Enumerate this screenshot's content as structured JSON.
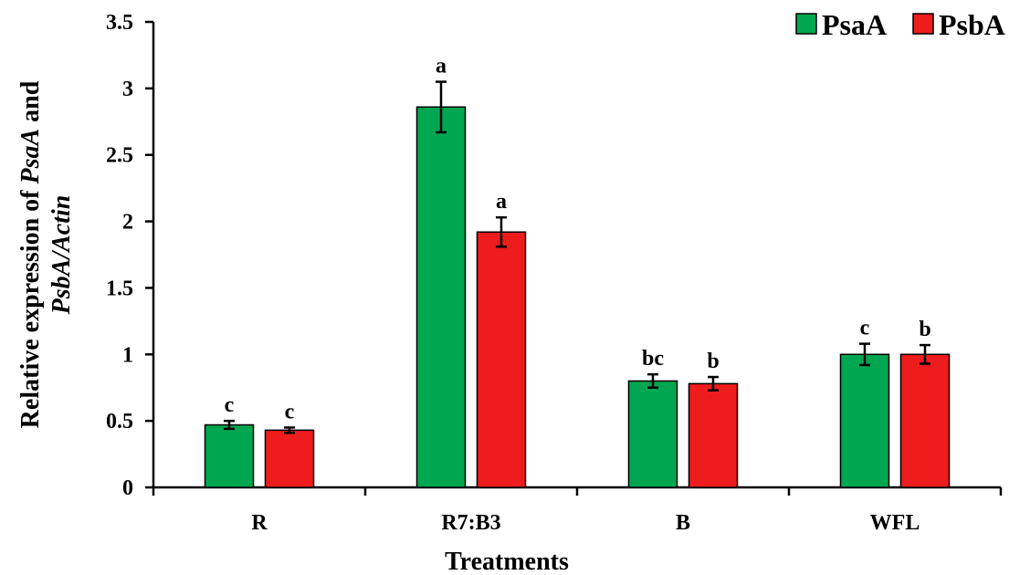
{
  "chart_data": {
    "type": "bar",
    "title": "",
    "xlabel": "Treatments",
    "ylabel_parts": [
      {
        "text": "Relative expression of ",
        "italic": false,
        "line": 1
      },
      {
        "text": "PsaA",
        "italic": true,
        "line": 1
      },
      {
        "text": " and",
        "italic": false,
        "line": 1
      },
      {
        "text": "PsbA/Actin",
        "italic": true,
        "line": 2
      }
    ],
    "ylim": [
      0,
      3.5
    ],
    "yticks": [
      0,
      0.5,
      1,
      1.5,
      2,
      2.5,
      3,
      3.5
    ],
    "ytick_labels": [
      "0",
      "0.5",
      "1",
      "1.5",
      "2",
      "2.5",
      "3",
      "3.5"
    ],
    "categories": [
      "R",
      "R7:B3",
      "B",
      "WFL"
    ],
    "series": [
      {
        "name": "PsaA",
        "color": "#00a651",
        "values": [
          0.47,
          2.86,
          0.8,
          1.0
        ],
        "errors": [
          0.03,
          0.19,
          0.05,
          0.08
        ],
        "labels": [
          "c",
          "a",
          "bc",
          "c"
        ]
      },
      {
        "name": "PsbA",
        "color": "#ee1c1c",
        "values": [
          0.43,
          1.92,
          0.78,
          1.0
        ],
        "errors": [
          0.02,
          0.11,
          0.05,
          0.07
        ],
        "labels": [
          "c",
          "a",
          "b",
          "b"
        ]
      }
    ],
    "legend": {
      "position": "top-right"
    },
    "grid": false
  }
}
